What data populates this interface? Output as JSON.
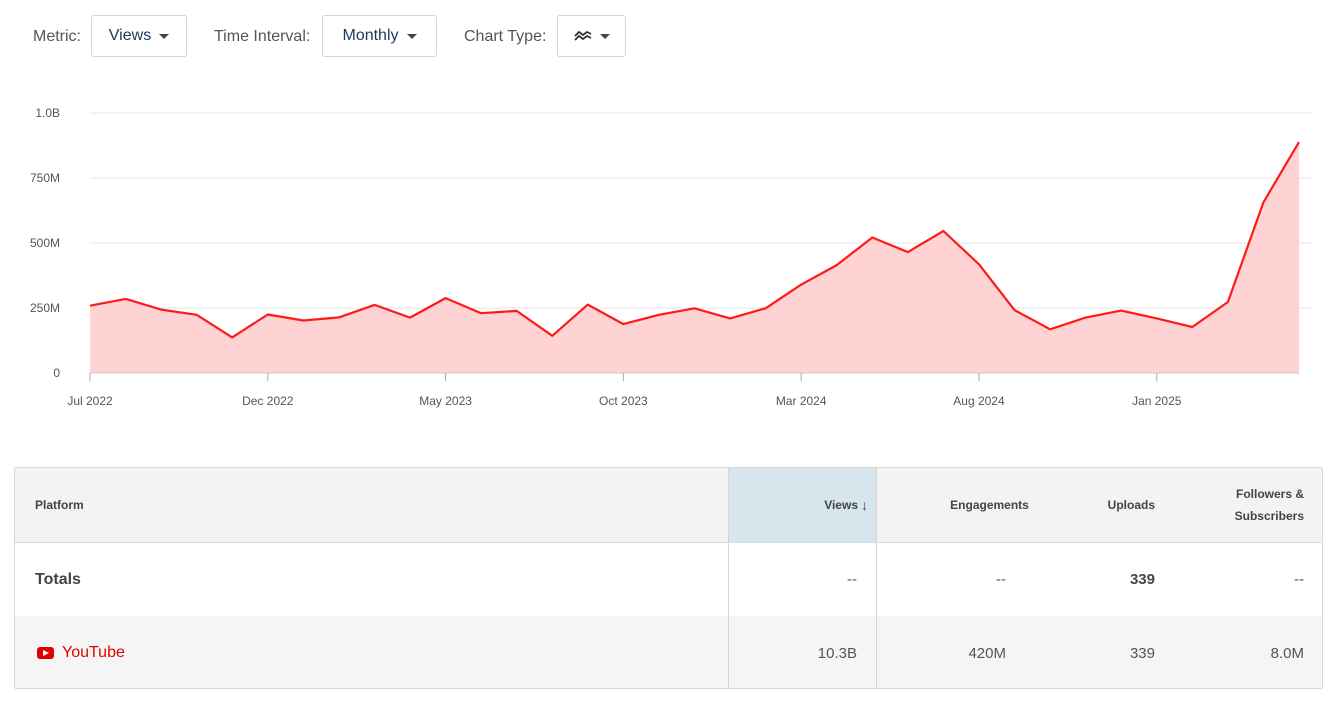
{
  "controls": {
    "metric_label": "Metric:",
    "metric_value": "Views",
    "interval_label": "Time Interval:",
    "interval_value": "Monthly",
    "charttype_label": "Chart Type:",
    "charttype_icon": "area-chart-icon"
  },
  "colors": {
    "line": "#ff1a1a",
    "fill": "#ffd3d3",
    "accent": "#1c3a5a",
    "youtube": "#e10000"
  },
  "chart_data": {
    "type": "area",
    "title": "",
    "xlabel": "",
    "ylabel": "",
    "ylim": [
      0,
      1000000000
    ],
    "grid": true,
    "legend": "none",
    "y_ticks": [
      "0",
      "250M",
      "500M",
      "750M",
      "1.0B"
    ],
    "x_tick_labels": [
      "Jul 2022",
      "Dec 2022",
      "May 2023",
      "Oct 2023",
      "Mar 2024",
      "Aug 2024",
      "Jan 2025"
    ],
    "x": [
      "Jul 2022",
      "Aug 2022",
      "Sep 2022",
      "Oct 2022",
      "Nov 2022",
      "Dec 2022",
      "Jan 2023",
      "Feb 2023",
      "Mar 2023",
      "Apr 2023",
      "May 2023",
      "Jun 2023",
      "Jul 2023",
      "Aug 2023",
      "Sep 2023",
      "Oct 2023",
      "Nov 2023",
      "Dec 2023",
      "Jan 2024",
      "Feb 2024",
      "Mar 2024",
      "Apr 2024",
      "May 2024",
      "Jun 2024",
      "Jul 2024",
      "Aug 2024",
      "Sep 2024",
      "Oct 2024",
      "Nov 2024",
      "Dec 2024",
      "Jan 2025",
      "Feb 2025",
      "Mar 2025",
      "Apr 2025",
      "May 2025"
    ],
    "series": [
      {
        "values": [
          259000000,
          285000000,
          244000000,
          224000000,
          137000000,
          225000000,
          202000000,
          214000000,
          262000000,
          213000000,
          288000000,
          230000000,
          239000000,
          143000000,
          263000000,
          188000000,
          224000000,
          249000000,
          210000000,
          249000000,
          340000000,
          415000000,
          521000000,
          465000000,
          546000000,
          418000000,
          242000000,
          168000000,
          213000000,
          240000000,
          210000000,
          177000000,
          273000000,
          656000000,
          888000000
        ]
      }
    ]
  },
  "table": {
    "headers": {
      "platform": "Platform",
      "views": "Views",
      "sort_arrow": "↓",
      "engagements": "Engagements",
      "uploads": "Uploads",
      "followers_line1": "Followers &",
      "followers_line2": "Subscribers"
    },
    "totals": {
      "label": "Totals",
      "views": "--",
      "engagements": "--",
      "uploads": "339",
      "followers": "--"
    },
    "rows": [
      {
        "platform": "YouTube",
        "icon": "youtube-icon",
        "views": "10.3B",
        "engagements": "420M",
        "uploads": "339",
        "followers": "8.0M"
      }
    ]
  }
}
